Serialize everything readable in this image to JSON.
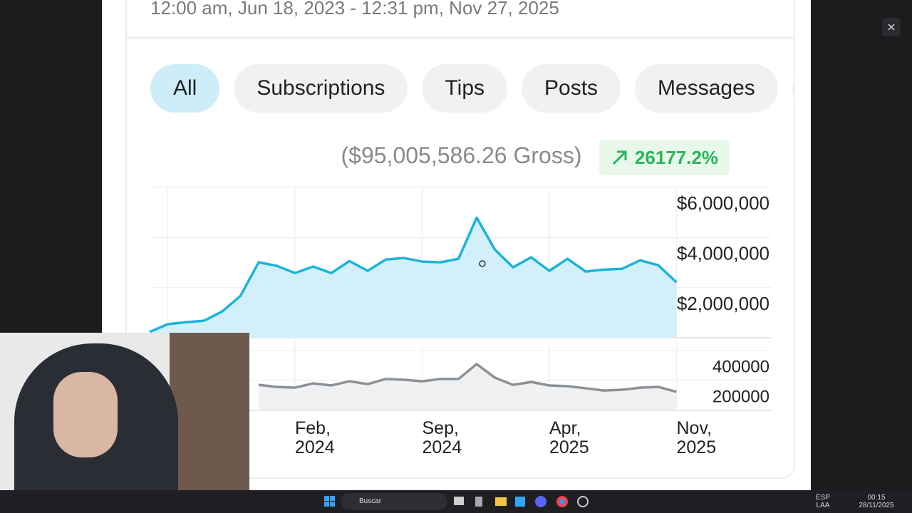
{
  "header": {
    "date_range": "12:00 am, Jun 18, 2023 - 12:31 pm, Nov 27, 2025"
  },
  "tabs": [
    "All",
    "Subscriptions",
    "Tips",
    "Posts",
    "Messages"
  ],
  "summary": {
    "gross": "($95,005,586.26 Gross)",
    "change": "26177.2%"
  },
  "chart_data": [
    {
      "type": "area",
      "color": "#1bb3d9",
      "fill": "#d3f0fa",
      "values": [
        230000,
        540000,
        620000,
        680000,
        1050000,
        1670000,
        3010000,
        2870000,
        2580000,
        2840000,
        2580000,
        3060000,
        2670000,
        3120000,
        3180000,
        3040000,
        3010000,
        3150000,
        4790000,
        3520000,
        2810000,
        3210000,
        2670000,
        3150000,
        2640000,
        2720000,
        2750000,
        3090000,
        2890000,
        2210000
      ],
      "ylim": [
        0,
        6000000
      ],
      "yticks": [
        {
          "value": 2000000,
          "label": "$2,000,000"
        },
        {
          "value": 4000000,
          "label": "$4,000,000"
        },
        {
          "value": 6000000,
          "label": "$6,000,000"
        }
      ],
      "grid": true
    },
    {
      "type": "area",
      "color": "#8c9196",
      "fill": "#f0f1f2",
      "categories": [
        null,
        null,
        null,
        null,
        null,
        null,
        null,
        null,
        "Feb, 2024",
        null,
        null,
        null,
        null,
        null,
        null,
        "Sep, 2024",
        null,
        null,
        null,
        null,
        null,
        null,
        "Apr, 2025",
        null,
        null,
        null,
        null,
        null,
        null,
        "Nov, 2025"
      ],
      "values": [
        null,
        null,
        null,
        null,
        null,
        null,
        171000,
        157000,
        152000,
        181000,
        167000,
        195000,
        176000,
        210000,
        205000,
        195000,
        210000,
        210000,
        310000,
        219000,
        171000,
        190000,
        167000,
        162000,
        148000,
        133000,
        138000,
        152000,
        157000,
        124000
      ],
      "ylim": [
        0,
        467000
      ],
      "yticks": [
        200000,
        400000
      ],
      "grid": true
    }
  ],
  "taskbar": {
    "search": "Buscar",
    "lang": "ESP",
    "region": "LAA",
    "time": "00:15",
    "date": "28/11/2025"
  }
}
